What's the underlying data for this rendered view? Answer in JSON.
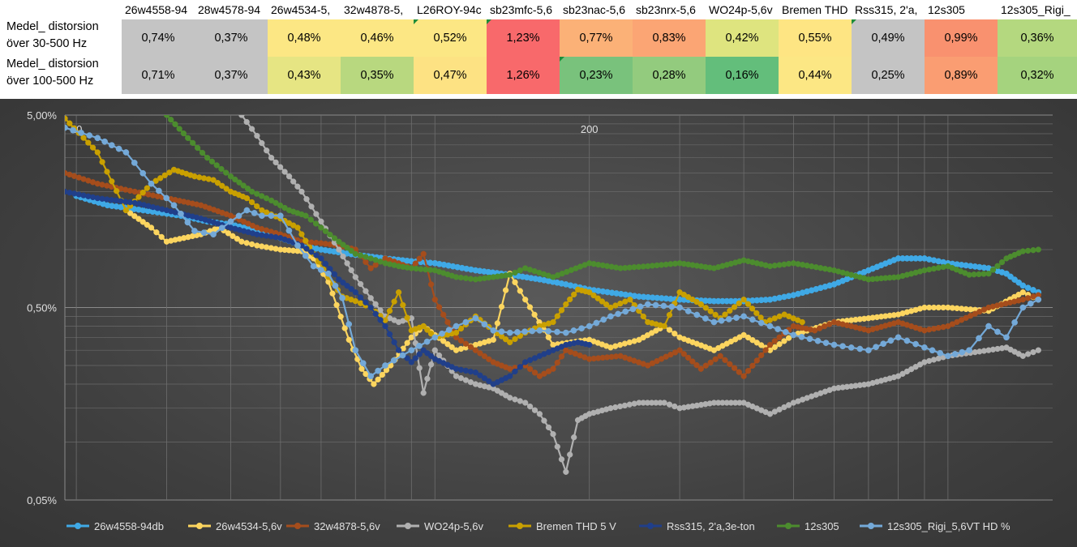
{
  "table": {
    "headers": [
      "26w4558-94",
      "28w4578-94",
      "26w4534-5,",
      "32w4878-5,",
      "L26ROY-94c",
      "sb23mfc-5,6",
      "sb23nac-5,6",
      "sb23nrx-5,6",
      "WO24p-5,6v",
      "Bremen THD",
      "Rss315, 2'a,",
      "12s305",
      "12s305_Rigi_"
    ],
    "rows": [
      {
        "label_line1": "Medel_ distorsion",
        "label_line2": "över 30-500 Hz",
        "values": [
          "0,74%",
          "0,37%",
          "0,48%",
          "0,46%",
          "0,52%",
          "1,23%",
          "0,77%",
          "0,83%",
          "0,42%",
          "0,55%",
          "0,49%",
          "0,99%",
          "0,36%"
        ],
        "colors": [
          "#c4c4c4",
          "#c4c4c4",
          "#fce784",
          "#fce784",
          "#fce784",
          "#f8696b",
          "#fbb177",
          "#fba574",
          "#dee47f",
          "#fee583",
          "#c4c4c4",
          "#f9916f",
          "#b4d87f"
        ]
      },
      {
        "label_line1": "Medel_ distorsion",
        "label_line2": "över 100-500 Hz",
        "values": [
          "0,71%",
          "0,37%",
          "0,43%",
          "0,35%",
          "0,47%",
          "1,26%",
          "0,23%",
          "0,28%",
          "0,16%",
          "0,44%",
          "0,25%",
          "0,89%",
          "0,32%"
        ],
        "colors": [
          "#c4c4c4",
          "#c4c4c4",
          "#e6e583",
          "#b8d87f",
          "#fde283",
          "#f8696b",
          "#79c27c",
          "#93cb7e",
          "#63be7b",
          "#fce784",
          "#c4c4c4",
          "#fa9d72",
          "#a5d37e"
        ]
      }
    ]
  },
  "chart_data": {
    "type": "line",
    "x_scale": "log",
    "y_scale": "log",
    "x_range": [
      19,
      1600
    ],
    "y_range_percent": [
      0.05,
      5
    ],
    "y_tick_labels": [
      "5,00%",
      "0,50%",
      "0,05%"
    ],
    "x_tick_labels": [
      "20",
      "200"
    ],
    "grid": true,
    "legend_position": "bottom",
    "series": [
      {
        "name": "26w4558-94db",
        "color": "#3fa9e6",
        "hollow": false,
        "x": [
          20,
          23,
          27,
          32,
          36,
          40,
          45,
          50,
          55,
          60,
          70,
          80,
          90,
          100,
          120,
          140,
          160,
          180,
          200,
          250,
          300,
          350,
          400,
          450,
          500,
          600,
          700,
          800,
          900,
          1000,
          1200,
          1300,
          1400,
          1500
        ],
        "y": [
          1.9,
          1.7,
          1.6,
          1.5,
          1.4,
          1.35,
          1.25,
          1.15,
          1.05,
          1.0,
          0.94,
          0.9,
          0.87,
          0.85,
          0.78,
          0.74,
          0.7,
          0.66,
          0.62,
          0.57,
          0.55,
          0.54,
          0.54,
          0.55,
          0.58,
          0.66,
          0.78,
          0.9,
          0.9,
          0.85,
          0.8,
          0.75,
          0.65,
          0.6
        ]
      },
      {
        "name": "26w4534-5,6v",
        "color": "#fcd55f",
        "hollow": false,
        "x": [
          25,
          28,
          30,
          35,
          38,
          42,
          45,
          50,
          55,
          58,
          62,
          68,
          72,
          76,
          82,
          90,
          95,
          100,
          110,
          120,
          130,
          140,
          150,
          170,
          200,
          220,
          250,
          280,
          300,
          350,
          400,
          450,
          500,
          600,
          700,
          800,
          900,
          1000,
          1200,
          1400,
          1500
        ],
        "y": [
          1.6,
          1.3,
          1.1,
          1.2,
          1.3,
          1.1,
          1.05,
          1.0,
          0.98,
          0.9,
          0.68,
          0.34,
          0.24,
          0.2,
          0.25,
          0.35,
          0.4,
          0.36,
          0.3,
          0.32,
          0.34,
          0.75,
          0.55,
          0.32,
          0.34,
          0.31,
          0.34,
          0.4,
          0.35,
          0.3,
          0.36,
          0.3,
          0.36,
          0.42,
          0.44,
          0.46,
          0.5,
          0.5,
          0.48,
          0.6,
          0.55
        ]
      },
      {
        "name": "32w4878-5,6v",
        "color": "#a54d1c",
        "hollow": false,
        "x": [
          19,
          22,
          26,
          30,
          35,
          40,
          45,
          50,
          55,
          60,
          65,
          70,
          75,
          80,
          85,
          90,
          95,
          100,
          110,
          120,
          130,
          140,
          150,
          160,
          170,
          180,
          200,
          230,
          260,
          300,
          330,
          360,
          400,
          450,
          500,
          550,
          600,
          700,
          800,
          900,
          1000,
          1200,
          1400,
          1500
        ],
        "y": [
          2.5,
          2.2,
          2.0,
          1.85,
          1.7,
          1.5,
          1.3,
          1.2,
          1.1,
          1.08,
          1.05,
          1.0,
          0.8,
          0.9,
          0.85,
          0.8,
          0.95,
          0.55,
          0.35,
          0.3,
          0.26,
          0.24,
          0.25,
          0.22,
          0.24,
          0.3,
          0.27,
          0.28,
          0.25,
          0.3,
          0.24,
          0.28,
          0.22,
          0.32,
          0.4,
          0.38,
          0.42,
          0.38,
          0.42,
          0.38,
          0.4,
          0.5,
          0.55,
          0.58
        ]
      },
      {
        "name": "WO24p-5,6v",
        "color": "#b0b0b0",
        "hollow": false,
        "x": [
          42,
          45,
          48,
          52,
          55,
          60,
          65,
          70,
          75,
          80,
          85,
          90,
          95,
          100,
          110,
          120,
          130,
          140,
          150,
          160,
          170,
          180,
          190,
          200,
          220,
          250,
          280,
          300,
          350,
          400,
          450,
          500,
          600,
          700,
          800,
          900,
          1000,
          1200,
          1300,
          1400,
          1500
        ],
        "y": [
          5.0,
          3.9,
          3.0,
          2.4,
          2.0,
          1.4,
          1.0,
          0.72,
          0.56,
          0.45,
          0.42,
          0.44,
          0.18,
          0.3,
          0.22,
          0.2,
          0.19,
          0.17,
          0.16,
          0.14,
          0.11,
          0.07,
          0.13,
          0.14,
          0.15,
          0.16,
          0.16,
          0.15,
          0.16,
          0.16,
          0.14,
          0.16,
          0.19,
          0.2,
          0.22,
          0.26,
          0.28,
          0.3,
          0.31,
          0.28,
          0.3
        ]
      },
      {
        "name": "Bremen THD 5 V",
        "color": "#c9a000",
        "hollow": false,
        "x": [
          19,
          22,
          25,
          28,
          31,
          34,
          37,
          40,
          43,
          46,
          50,
          54,
          58,
          62,
          66,
          70,
          75,
          80,
          85,
          90,
          95,
          100,
          110,
          120,
          130,
          140,
          150,
          160,
          170,
          180,
          190,
          200,
          220,
          240,
          260,
          280,
          300,
          330,
          360,
          400,
          440,
          480,
          520
        ],
        "y": [
          4.8,
          3.2,
          1.6,
          2.2,
          2.6,
          2.4,
          2.3,
          2.0,
          1.85,
          1.6,
          1.45,
          1.3,
          0.95,
          0.72,
          0.57,
          0.54,
          0.5,
          0.43,
          0.6,
          0.38,
          0.4,
          0.35,
          0.37,
          0.45,
          0.38,
          0.33,
          0.37,
          0.4,
          0.42,
          0.52,
          0.62,
          0.6,
          0.5,
          0.55,
          0.42,
          0.4,
          0.6,
          0.52,
          0.44,
          0.55,
          0.42,
          0.46,
          0.42
        ]
      },
      {
        "name": "Rss315, 2'a,3e-ton",
        "color": "#203f8a",
        "hollow": false,
        "x": [
          19,
          22,
          26,
          30,
          35,
          40,
          45,
          50,
          55,
          60,
          65,
          70,
          75,
          80,
          85,
          90,
          95,
          100,
          110,
          120,
          130,
          140,
          150,
          160,
          170,
          180,
          190,
          200
        ],
        "y": [
          2.0,
          1.85,
          1.75,
          1.6,
          1.45,
          1.3,
          1.2,
          1.15,
          1.05,
          0.9,
          0.7,
          0.6,
          0.5,
          0.4,
          0.3,
          0.26,
          0.3,
          0.27,
          0.24,
          0.23,
          0.2,
          0.22,
          0.26,
          0.28,
          0.3,
          0.32,
          0.33,
          0.32
        ]
      },
      {
        "name": "12s305",
        "color": "#4c8c2e",
        "hollow": false,
        "x": [
          30,
          33,
          36,
          40,
          44,
          48,
          52,
          56,
          60,
          65,
          70,
          75,
          80,
          85,
          90,
          100,
          110,
          120,
          130,
          140,
          150,
          170,
          200,
          230,
          260,
          300,
          350,
          400,
          450,
          500,
          600,
          700,
          800,
          900,
          1000,
          1100,
          1200,
          1300,
          1400,
          1500
        ],
        "y": [
          5.0,
          3.8,
          3.0,
          2.4,
          2.0,
          1.8,
          1.6,
          1.5,
          1.3,
          1.1,
          0.95,
          0.9,
          0.85,
          0.82,
          0.8,
          0.78,
          0.72,
          0.7,
          0.72,
          0.74,
          0.8,
          0.72,
          0.85,
          0.8,
          0.82,
          0.85,
          0.8,
          0.88,
          0.82,
          0.85,
          0.78,
          0.7,
          0.72,
          0.78,
          0.82,
          0.74,
          0.75,
          0.9,
          0.98,
          1.0
        ]
      },
      {
        "name": "12s305_Rigi_5,6VT HD %",
        "color": "#74a9d8",
        "hollow": false,
        "x": [
          19,
          22,
          25,
          28,
          31,
          34,
          37,
          40,
          43,
          46,
          50,
          54,
          58,
          62,
          66,
          70,
          75,
          80,
          90,
          100,
          110,
          120,
          130,
          140,
          160,
          180,
          200,
          220,
          260,
          300,
          350,
          400,
          450,
          500,
          600,
          700,
          800,
          900,
          1000,
          1100,
          1200,
          1300,
          1400,
          1500
        ],
        "y": [
          4.3,
          3.8,
          3.2,
          2.2,
          1.7,
          1.25,
          1.2,
          1.4,
          1.6,
          1.5,
          1.5,
          1.05,
          0.82,
          0.75,
          0.56,
          0.3,
          0.22,
          0.25,
          0.3,
          0.35,
          0.4,
          0.44,
          0.38,
          0.37,
          0.38,
          0.37,
          0.4,
          0.45,
          0.52,
          0.5,
          0.42,
          0.45,
          0.4,
          0.36,
          0.32,
          0.3,
          0.35,
          0.31,
          0.28,
          0.3,
          0.4,
          0.35,
          0.5,
          0.55
        ]
      }
    ]
  }
}
